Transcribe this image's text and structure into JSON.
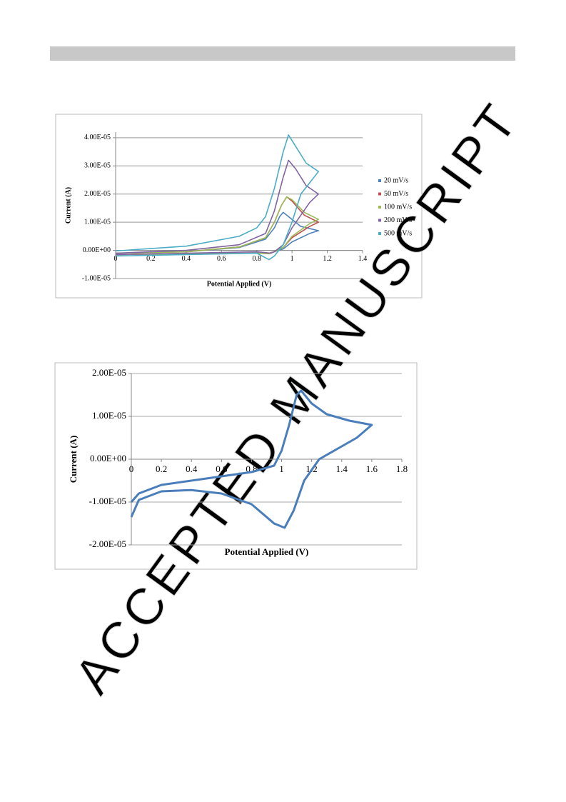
{
  "watermark": "ACCEPTED MANUSCRIPT",
  "chart_data": [
    {
      "type": "line",
      "xlabel": "Potential Applied (V)",
      "ylabel": "Current (A)",
      "xlim": [
        0,
        1.4
      ],
      "xticks": [
        0,
        0.2,
        0.4,
        0.6,
        0.8,
        1,
        1.2,
        1.4
      ],
      "ylim": [
        -1e-05,
        4.2e-05
      ],
      "yticks": [
        {
          "value": -1e-05,
          "label": "-1.00E-05"
        },
        {
          "value": 0,
          "label": "0.00E+00"
        },
        {
          "value": 1e-05,
          "label": "1.00E-05"
        },
        {
          "value": 2e-05,
          "label": "2.00E-05"
        },
        {
          "value": 3e-05,
          "label": "3.00E-05"
        },
        {
          "value": 4e-05,
          "label": "4.00E-05"
        }
      ],
      "grid": true,
      "legend": "right",
      "series": [
        {
          "name": "20 mV/s",
          "color": "#4f81bd",
          "x": [
            0,
            0.4,
            0.7,
            0.85,
            0.9,
            0.93,
            0.95,
            0.98,
            1.05,
            1.15,
            1.1,
            1.0,
            0.95,
            0.9,
            0.87,
            0.8,
            0.4,
            0
          ],
          "values": [
            -1e-06,
            -5e-07,
            1e-06,
            4e-06,
            8e-06,
            1.2e-05,
            1.35e-05,
            1.2e-05,
            8.5e-06,
            7e-06,
            6e-06,
            3e-06,
            5e-07,
            -5e-07,
            -1e-06,
            -1e-06,
            -1.2e-06,
            -1.5e-06
          ]
        },
        {
          "name": "50 mV/s",
          "color": "#c0504d",
          "x": [
            0,
            0.4,
            0.7,
            0.85,
            0.9,
            0.94,
            0.97,
            1.0,
            1.07,
            1.15,
            1.1,
            1.0,
            0.95,
            0.9,
            0.87,
            0.8,
            0.4,
            0
          ],
          "values": [
            -1e-06,
            -5e-07,
            1.2e-06,
            4.5e-06,
            1e-05,
            1.6e-05,
            1.9e-05,
            1.75e-05,
            1.25e-05,
            1e-05,
            8.5e-06,
            4.5e-06,
            1e-06,
            -5e-07,
            -1e-06,
            -1e-06,
            -1.2e-06,
            -1.5e-06
          ]
        },
        {
          "name": "100 mV/s",
          "color": "#9bbb59",
          "x": [
            0,
            0.4,
            0.7,
            0.85,
            0.9,
            0.94,
            0.97,
            1.0,
            1.07,
            1.15,
            1.1,
            1.0,
            0.95,
            0.9,
            0.87,
            0.8,
            0.4,
            0
          ],
          "values": [
            -1e-06,
            -5e-07,
            1.2e-06,
            4.5e-06,
            1e-05,
            1.6e-05,
            1.9e-05,
            1.8e-05,
            1.35e-05,
            1.1e-05,
            9.5e-06,
            5e-06,
            1e-06,
            -5e-07,
            -1.2e-06,
            -1e-06,
            -1.2e-06,
            -1.5e-06
          ]
        },
        {
          "name": "200 mV/s",
          "color": "#8064a2",
          "x": [
            0,
            0.4,
            0.7,
            0.85,
            0.9,
            0.95,
            0.98,
            1.02,
            1.08,
            1.15,
            1.1,
            1.0,
            0.95,
            0.9,
            0.88,
            0.8,
            0.4,
            0
          ],
          "values": [
            -1e-06,
            0.0,
            2e-06,
            6e-06,
            1.4e-05,
            2.6e-05,
            3.2e-05,
            2.9e-05,
            2.3e-05,
            2e-05,
            1.7e-05,
            8e-06,
            2e-06,
            -5e-07,
            -1e-06,
            -5e-07,
            -1e-06,
            -1.5e-06
          ]
        },
        {
          "name": "500 mV/s",
          "color": "#4bacc6",
          "x": [
            0,
            0.4,
            0.7,
            0.8,
            0.85,
            0.9,
            0.95,
            0.98,
            1.02,
            1.08,
            1.15,
            1.1,
            1.05,
            1.0,
            0.95,
            0.9,
            0.87,
            0.8,
            0.4,
            0
          ],
          "values": [
            -2e-07,
            1.5e-06,
            5e-06,
            8e-06,
            1.2e-05,
            2.2e-05,
            3.5e-05,
            4.1e-05,
            3.7e-05,
            3.1e-05,
            2.8e-05,
            2.4e-05,
            2e-05,
            1e-05,
            2e-06,
            -2e-06,
            -3.3e-06,
            -1e-06,
            -1.5e-06,
            -2e-06
          ]
        }
      ]
    },
    {
      "type": "line",
      "xlabel": "Potential Applied (V)",
      "ylabel": "Current (A)",
      "xlim": [
        0,
        1.8
      ],
      "xticks": [
        0,
        0.2,
        0.4,
        0.6,
        0.8,
        1,
        1.2,
        1.4,
        1.6,
        1.8
      ],
      "ylim": [
        -2e-05,
        2e-05
      ],
      "yticks": [
        {
          "value": -2e-05,
          "label": "-2.00E-05"
        },
        {
          "value": -1e-05,
          "label": "-1.00E-05"
        },
        {
          "value": 0,
          "label": "0.00E+00"
        },
        {
          "value": 1e-05,
          "label": "1.00E-05"
        },
        {
          "value": 2e-05,
          "label": "2.00E-05"
        }
      ],
      "grid": true,
      "series": [
        {
          "name": null,
          "color": "#4a7ebb",
          "x": [
            0,
            0.05,
            0.2,
            0.5,
            0.8,
            0.95,
            1.0,
            1.05,
            1.1,
            1.13,
            1.2,
            1.3,
            1.45,
            1.6,
            1.5,
            1.4,
            1.25,
            1.15,
            1.08,
            1.02,
            0.95,
            0.8,
            0.6,
            0.4,
            0.2,
            0.05,
            0
          ],
          "values": [
            -1e-05,
            -8e-06,
            -6e-06,
            -4.5e-06,
            -3e-06,
            -1.5e-06,
            2e-06,
            8e-06,
            1.5e-05,
            1.6e-05,
            1.3e-05,
            1.05e-05,
            9e-06,
            8e-06,
            5e-06,
            3e-06,
            0.0,
            -5e-06,
            -1.2e-05,
            -1.6e-05,
            -1.5e-05,
            -1.05e-05,
            -8e-06,
            -7.2e-06,
            -7.5e-06,
            -9.5e-06,
            -1.35e-05
          ]
        }
      ]
    }
  ]
}
